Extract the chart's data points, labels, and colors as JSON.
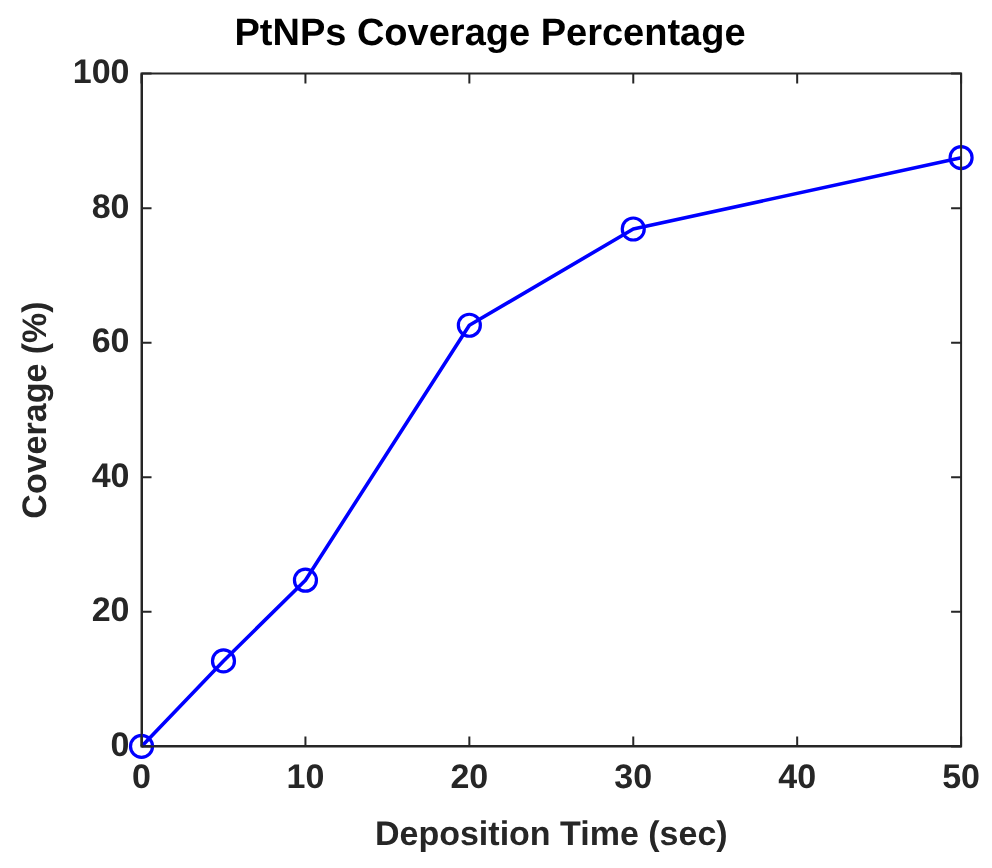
{
  "chart_data": {
    "type": "line",
    "title": "PtNPs Coverage Percentage",
    "xlabel": "Deposition Time (sec)",
    "ylabel": "Coverage (%)",
    "x": [
      0,
      5,
      10,
      20,
      30,
      50
    ],
    "series": [
      {
        "color": "#0000ff",
        "values": [
          0,
          12.7,
          24.7,
          62.6,
          76.9,
          87.5
        ]
      }
    ],
    "xlim": [
      0,
      50
    ],
    "xticks": [
      0,
      10,
      20,
      30,
      40,
      50
    ],
    "ylim": [
      0,
      100
    ],
    "yticks": [
      0,
      20,
      40,
      60,
      80,
      100
    ],
    "grid": false,
    "legend": false,
    "marker": "circle",
    "line_style": "solid"
  }
}
